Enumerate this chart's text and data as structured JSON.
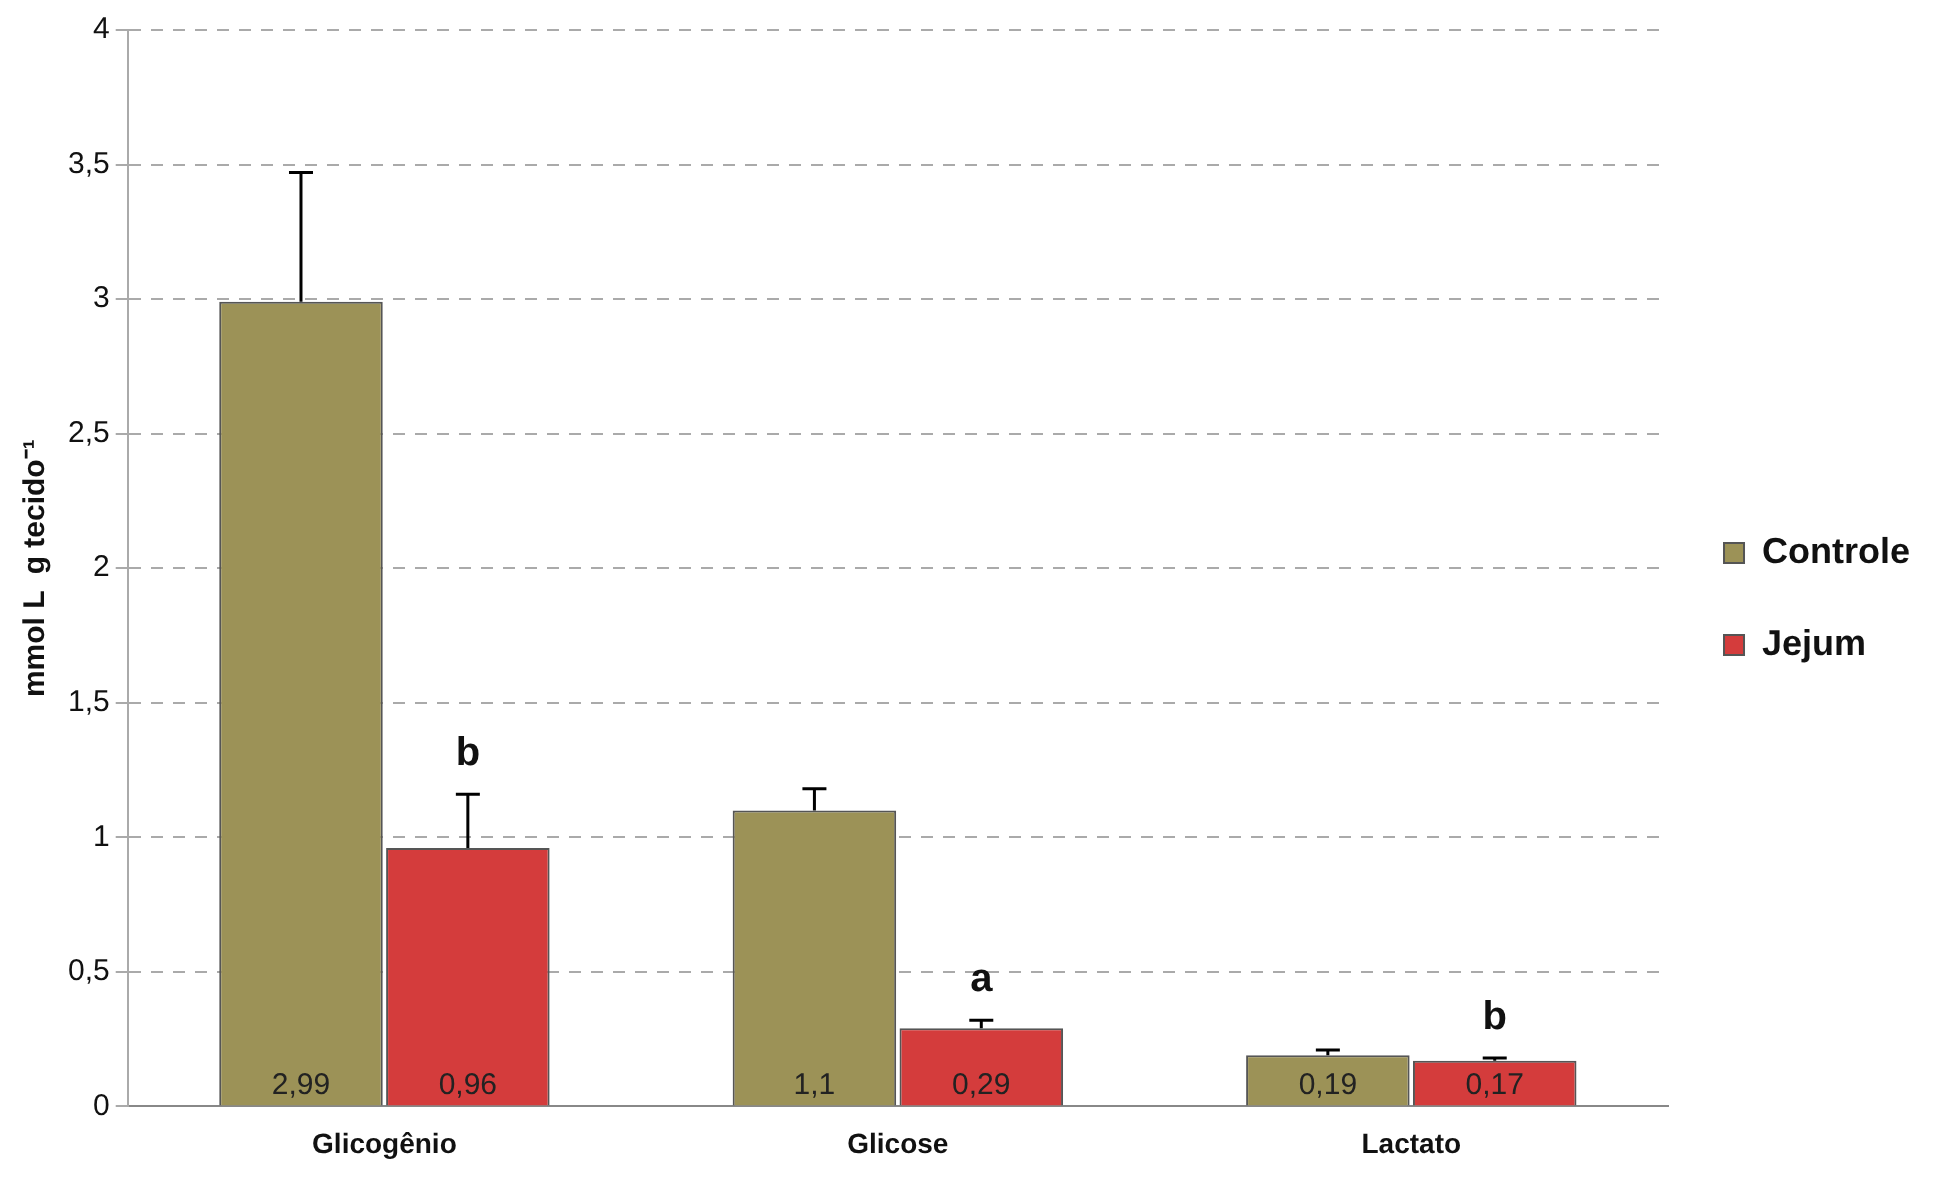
{
  "chart_data": {
    "type": "bar",
    "ylabel": "mmol L  g tecido⁻¹",
    "categories": [
      "Glicogênio",
      "Glicose",
      "Lactato"
    ],
    "series": [
      {
        "name": "Controle",
        "color": "#9c9257",
        "values": [
          2.99,
          1.1,
          0.19
        ],
        "errors": [
          [
            2.99,
            3.47
          ],
          [
            1.1,
            1.18
          ],
          [
            0.19,
            0.21
          ]
        ],
        "value_labels": [
          "2,99",
          "1,1",
          "0,19"
        ]
      },
      {
        "name": "Jejum",
        "color": "#d43c3c",
        "values": [
          0.96,
          0.29,
          0.17
        ],
        "errors": [
          [
            0.96,
            1.16
          ],
          [
            0.29,
            0.32
          ],
          [
            0.17,
            0.18
          ]
        ],
        "value_labels": [
          "0,96",
          "0,29",
          "0,17"
        ]
      }
    ],
    "ylim": [
      0,
      4
    ],
    "yticks": [
      0,
      {
        "value": 0.5,
        "label": "0,5"
      },
      1,
      {
        "value": 1.5,
        "label": "1,5"
      },
      2,
      {
        "value": 2.5,
        "label": "2,5"
      },
      3,
      {
        "value": 3.5,
        "label": "3,5"
      },
      4
    ],
    "grid": "y",
    "legend": "right",
    "annotations": [
      {
        "text": "b",
        "x": "Glicogênio",
        "y": 1.16
      },
      {
        "text": "a",
        "x": "Glicose",
        "y": 0.32
      },
      {
        "text": "b",
        "x": "Lactato",
        "y": 0.18
      }
    ]
  }
}
